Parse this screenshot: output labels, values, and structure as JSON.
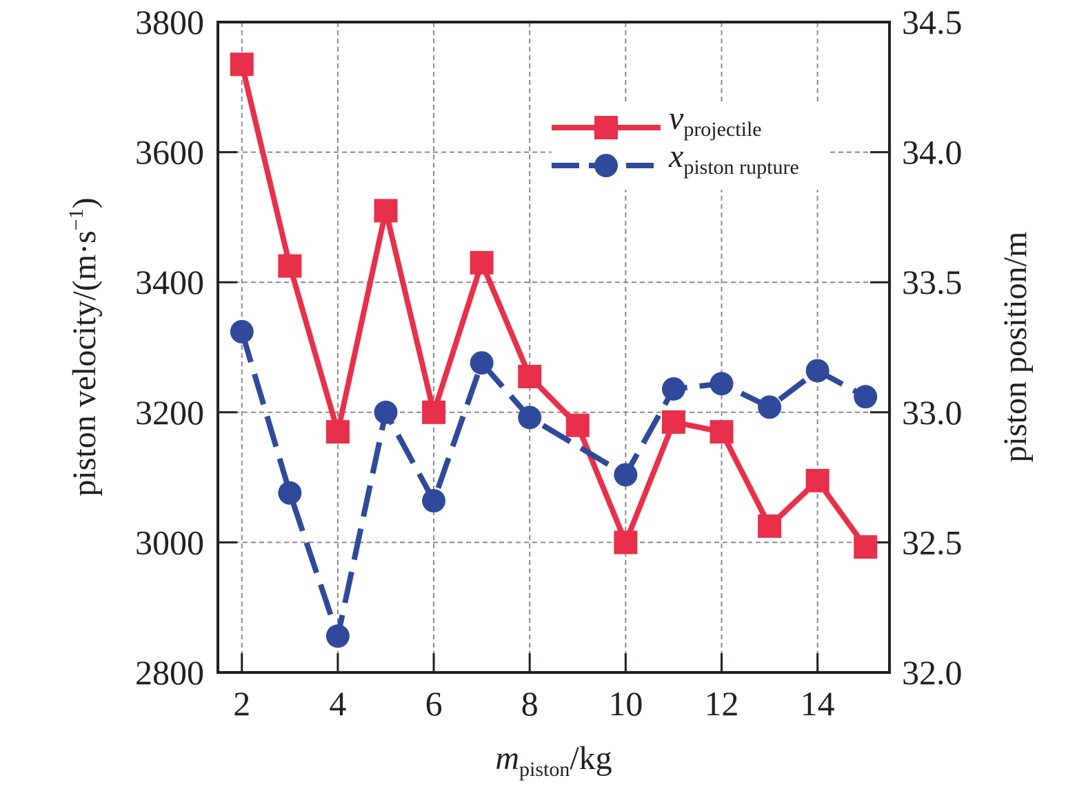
{
  "chart_data": {
    "type": "line",
    "x": [
      2,
      3,
      4,
      5,
      6,
      7,
      8,
      9,
      10,
      11,
      12,
      13,
      14,
      15
    ],
    "xlabel": {
      "main": "m",
      "sub": "piston",
      "unit": "/kg"
    },
    "ylabel_left": "piston velocity/(m·s",
    "ylabel_left_sup": "−1",
    "ylabel_left_close": ")",
    "ylabel_right": "piston position/m",
    "xlim": [
      1.5,
      15.5
    ],
    "xticks": [
      "2",
      "4",
      "6",
      "8",
      "10",
      "12",
      "14"
    ],
    "xtick_values": [
      2,
      4,
      6,
      8,
      10,
      12,
      14
    ],
    "ylim_left": [
      2800,
      3800
    ],
    "yticks_left": [
      "2800",
      "3000",
      "3200",
      "3400",
      "3600",
      "3800"
    ],
    "ylim_right": [
      32.0,
      34.5
    ],
    "yticks_right": [
      "32.0",
      "32.5",
      "33.0",
      "33.5",
      "34.0",
      "34.5"
    ],
    "grid": true,
    "legend_position": "top-right",
    "series": [
      {
        "name_main": "v",
        "name_sub": "projectile",
        "axis": "left",
        "color": "#e8304a",
        "marker": "square",
        "line": "solid",
        "values": [
          3735,
          3425,
          3170,
          3510,
          3200,
          3430,
          3255,
          3180,
          3000,
          3185,
          3170,
          3025,
          3095,
          2993
        ]
      },
      {
        "name_main": "x",
        "name_sub": "piston rupture",
        "axis": "right",
        "color": "#2f4a9a",
        "marker": "circle",
        "line": "dashed",
        "values": [
          33.31,
          32.69,
          32.14,
          33.0,
          32.66,
          33.19,
          32.98,
          null,
          32.76,
          33.09,
          33.11,
          33.02,
          33.16,
          33.06
        ]
      }
    ]
  }
}
